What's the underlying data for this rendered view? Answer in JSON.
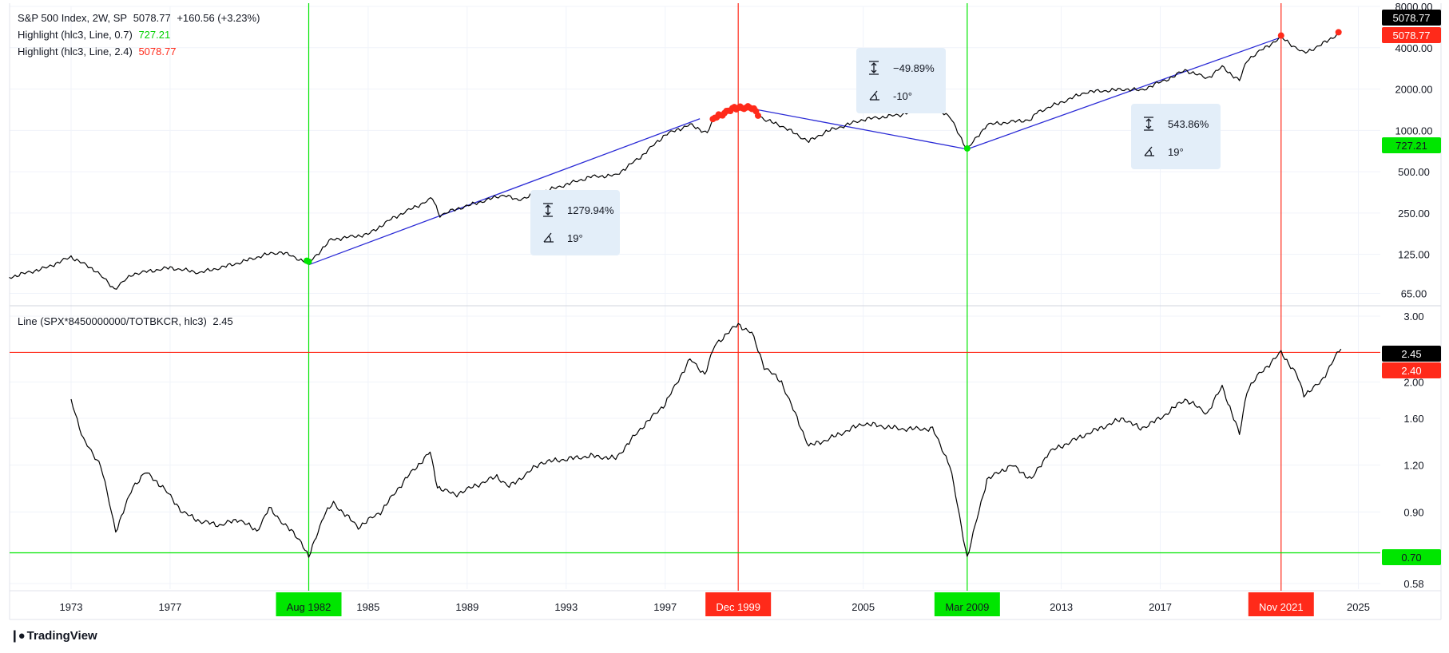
{
  "legend": {
    "main_title": "S&P 500 Index, 2W, SP",
    "main_price": "5078.77",
    "main_change": "+160.56 (+3.23%)",
    "hl1_label": "Highlight (hlc3, Line, 0.7)",
    "hl1_value": "727.21",
    "hl2_label": "Highlight (hlc3, Line, 2.4)",
    "hl2_value": "5078.77",
    "sub_label": "Line (SPX*8450000000/TOTBKCR, hlc3)",
    "sub_value": "2.45"
  },
  "brand": "TradingView",
  "colors": {
    "price_line": "#000000",
    "trend_line": "#2b2bd6",
    "green": "#00e600",
    "red": "#ff2a1a",
    "info_box": "#e3eef9",
    "grid": "#f0f3fa"
  },
  "axis_badges": {
    "main_last": "5078.77",
    "main_high": "5078.77",
    "main_low": "727.21",
    "sub_last": "2.45",
    "sub_high": "2.40",
    "sub_low": "0.70"
  },
  "vertical_markers": [
    {
      "label": "Aug 1982",
      "year": 1982.6,
      "color": "green"
    },
    {
      "label": "Dec 1999",
      "year": 1999.95,
      "color": "red"
    },
    {
      "label": "Mar 2009",
      "year": 2009.2,
      "color": "green"
    },
    {
      "label": "Nov 2021",
      "year": 2021.88,
      "color": "red"
    }
  ],
  "measure_boxes": [
    {
      "percent": "1279.94%",
      "angle": "19°"
    },
    {
      "percent": "−49.89%",
      "angle": "-10°"
    },
    {
      "percent": "543.86%",
      "angle": "19°"
    }
  ],
  "chart_data": [
    {
      "type": "line",
      "title": "S&P 500 Index, 2W, SP",
      "yscale": "log",
      "ylim": [
        55,
        8000
      ],
      "y_ticks": [
        "8000.00",
        "4000.00",
        "2000.00",
        "1000.00",
        "500.00",
        "250.00",
        "125.00",
        "65.00"
      ],
      "x_ticks": [
        "1973",
        "1977",
        "1985",
        "1989",
        "1993",
        "1997",
        "2005",
        "2013",
        "2017",
        "2025"
      ],
      "series": [
        {
          "x": [
            1970.5,
            1972.0,
            1973.0,
            1974.0,
            1974.75,
            1975.5,
            1977.0,
            1978.2,
            1979.5,
            1980.9,
            1981.5,
            1982.6,
            1983.5,
            1985.0,
            1986.0,
            1987.6,
            1987.9,
            1988.5,
            1990.5,
            1991.0,
            1994.0,
            1995.0,
            1996.0,
            1997.0,
            1998.0,
            1998.7,
            1999.0,
            1999.95,
            2000.5,
            2001.0,
            2001.7,
            2002.8,
            2003.5,
            2005.0,
            2006.5,
            2007.8,
            2008.5,
            2009.2,
            2010.0,
            2011.8,
            2012.0,
            2014.0,
            2015.7,
            2016.2,
            2017.5,
            2018.0,
            2018.9,
            2019.5,
            2020.2,
            2020.5,
            2021.0,
            2021.88,
            2022.8,
            2023.5,
            2024.2
          ],
          "y": [
            85,
            100,
            120,
            95,
            70,
            90,
            100,
            92,
            105,
            125,
            130,
            108,
            160,
            175,
            230,
            320,
            240,
            265,
            340,
            310,
            460,
            470,
            640,
            930,
            1100,
            960,
            1250,
            1480,
            1450,
            1200,
            1080,
            830,
            980,
            1200,
            1300,
            1550,
            1250,
            727,
            1100,
            1200,
            1350,
            1900,
            2000,
            1950,
            2450,
            2750,
            2400,
            2900,
            2300,
            3250,
            3750,
            4766,
            3650,
            4200,
            5078
          ]
        }
      ],
      "trend_lines": [
        {
          "x": [
            1982.6,
            1998.4
          ],
          "y": [
            105,
            1215
          ],
          "change": "1279.94%",
          "angle": "19°"
        },
        {
          "x": [
            2000.5,
            2009.2
          ],
          "y": [
            1440,
            730
          ],
          "change": "−49.89%",
          "angle": "-10°"
        },
        {
          "x": [
            2009.2,
            2021.88
          ],
          "y": [
            730,
            4766
          ],
          "change": "543.86%",
          "angle": "19°"
        }
      ],
      "highlight_above": 2.4,
      "highlight_below": 0.7
    },
    {
      "type": "line",
      "title": "Line (SPX*8450000000/TOTBKCR, hlc3)",
      "yscale": "log",
      "ylim": [
        0.56,
        3.15
      ],
      "y_ticks": [
        "3.00",
        "2.00",
        "1.60",
        "1.20",
        "0.90",
        "0.58"
      ],
      "x_ticks": [
        "1973",
        "1977",
        "1985",
        "1989",
        "1993",
        "1997",
        "2005",
        "2013",
        "2017",
        "2025"
      ],
      "hlines": [
        {
          "y": 2.4,
          "color": "red"
        },
        {
          "y": 0.7,
          "color": "green"
        }
      ],
      "series": [
        {
          "x": [
            1973.0,
            1973.5,
            1974.2,
            1974.8,
            1975.5,
            1976.0,
            1976.7,
            1977.5,
            1978.2,
            1979.0,
            1979.8,
            1980.5,
            1981.0,
            1981.5,
            1982.3,
            1982.6,
            1983.2,
            1983.6,
            1984.6,
            1985.5,
            1986.5,
            1987.5,
            1987.8,
            1988.5,
            1990.2,
            1990.7,
            1992.0,
            1994.0,
            1995.0,
            1996.0,
            1997.0,
            1998.0,
            1998.6,
            1999.0,
            1999.5,
            1999.95,
            2000.5,
            2001.0,
            2001.7,
            2002.8,
            2003.5,
            2005.0,
            2006.5,
            2007.8,
            2008.5,
            2009.2,
            2010.0,
            2011.0,
            2011.8,
            2012.5,
            2014.0,
            2015.5,
            2016.2,
            2017.0,
            2018.0,
            2018.9,
            2019.5,
            2020.2,
            2020.5,
            2021.0,
            2021.88,
            2022.5,
            2022.8,
            2023.5,
            2024.0,
            2024.3
          ],
          "y": [
            1.8,
            1.4,
            1.2,
            0.8,
            1.05,
            1.15,
            1.05,
            0.9,
            0.85,
            0.83,
            0.86,
            0.8,
            0.92,
            0.85,
            0.75,
            0.68,
            0.88,
            0.95,
            0.82,
            0.9,
            1.1,
            1.3,
            1.05,
            1.0,
            1.12,
            1.05,
            1.22,
            1.27,
            1.25,
            1.5,
            1.75,
            2.3,
            2.1,
            2.5,
            2.7,
            2.85,
            2.7,
            2.2,
            2.0,
            1.35,
            1.4,
            1.55,
            1.5,
            1.5,
            1.2,
            0.68,
            1.1,
            1.2,
            1.1,
            1.3,
            1.45,
            1.6,
            1.5,
            1.6,
            1.8,
            1.65,
            1.95,
            1.45,
            1.9,
            2.1,
            2.4,
            2.1,
            1.85,
            2.0,
            2.3,
            2.45
          ]
        }
      ]
    }
  ]
}
